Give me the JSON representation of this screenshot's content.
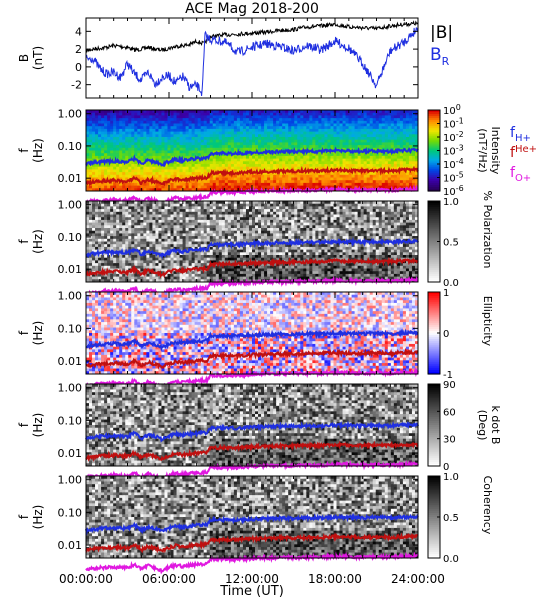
{
  "chart_data": {
    "type": "line",
    "title": "ACE Mag 2018-200",
    "x_label": "Time (UT)",
    "x_ticks": [
      "00:00:00",
      "06:00:00",
      "12:00:00",
      "18:00:00",
      "24:00:00"
    ],
    "x_range_hours": [
      0,
      24
    ],
    "panels": [
      {
        "id": "bfield",
        "ylabel": "B",
        "yunit": "(nT)",
        "yticks": [
          "4",
          "2",
          "0",
          "-2"
        ],
        "ylim": [
          -3.5,
          5.5
        ],
        "scale": "linear",
        "legend": [
          {
            "text": "|B|",
            "color": "#000000"
          },
          {
            "text": "B",
            "sub": "R",
            "color": "#1f2fe0"
          }
        ],
        "series": [
          {
            "name": "|B|",
            "color": "#000000",
            "x": [
              0,
              0.5,
              1,
              1.5,
              2,
              2.5,
              3,
              3.5,
              4,
              4.5,
              5,
              5.5,
              6,
              6.5,
              7,
              7.5,
              8,
              8.5,
              9,
              10,
              11,
              12,
              13,
              14,
              15,
              16,
              17,
              18,
              19,
              20,
              21,
              22,
              23,
              24
            ],
            "y": [
              1.8,
              2.0,
              2.1,
              2.2,
              2.4,
              2.3,
              2.2,
              1.9,
              2.0,
              2.2,
              2.0,
              1.9,
              2.1,
              2.3,
              2.4,
              2.5,
              2.9,
              2.6,
              3.4,
              3.6,
              3.7,
              3.8,
              3.9,
              4.1,
              4.2,
              4.5,
              4.6,
              4.8,
              4.5,
              4.4,
              4.3,
              4.6,
              4.8,
              4.9
            ]
          },
          {
            "name": "B",
            "color": "#1f2fe0",
            "x": [
              0,
              0.5,
              1,
              1.5,
              2,
              2.5,
              3,
              3.5,
              4,
              4.5,
              5,
              5.5,
              6,
              6.5,
              7,
              7.5,
              8,
              8.4,
              8.6,
              9,
              10,
              11,
              12,
              13,
              14,
              15,
              16,
              17,
              18,
              19,
              20,
              21,
              22,
              23,
              24
            ],
            "y": [
              0.9,
              1.0,
              -0.2,
              -0.8,
              -0.6,
              -1.2,
              0.4,
              -0.8,
              -1.5,
              -0.6,
              -1.9,
              -1.2,
              -1.0,
              -1.8,
              -1.1,
              -2.3,
              -2.1,
              -2.9,
              3.5,
              3.1,
              2.8,
              1.6,
              2.2,
              2.6,
              2.3,
              1.8,
              2.4,
              1.9,
              2.9,
              2.1,
              0.4,
              -2.1,
              1.8,
              2.8,
              4.4
            ]
          }
        ]
      },
      {
        "id": "intensity",
        "ylabel": "f",
        "yunit": "(Hz)",
        "yticks": [
          "1.00",
          "0.10",
          "0.01"
        ],
        "scale": "log",
        "ylim": [
          0.004,
          1.3
        ],
        "colorbar": {
          "label": "Intensity",
          "unit": "(nT²/Hz)",
          "type": "rainbow",
          "ticks": [
            {
              "base": "10",
              "exp": "0"
            },
            {
              "base": "10",
              "exp": "-1"
            },
            {
              "base": "10",
              "exp": "-2"
            },
            {
              "base": "10",
              "exp": "-3"
            },
            {
              "base": "10",
              "exp": "-4"
            },
            {
              "base": "10",
              "exp": "-5"
            },
            {
              "base": "10",
              "exp": "-6"
            }
          ]
        },
        "legend": [
          {
            "text": "f",
            "sub": "H+",
            "color": "#1f2fe0"
          },
          {
            "text": "f",
            "sub": "He+",
            "color": "#c01010"
          },
          {
            "text": "f",
            "sub": "O+",
            "color": "#e018e0"
          }
        ]
      },
      {
        "id": "polarization",
        "ylabel": "f",
        "yunit": "(Hz)",
        "yticks": [
          "1.00",
          "0.10",
          "0.01"
        ],
        "scale": "log",
        "ylim": [
          0.004,
          1.3
        ],
        "colorbar": {
          "label": "% Polarization",
          "unit": "",
          "type": "gray",
          "ticks": [
            "1.0",
            "0.5",
            "0.0"
          ]
        }
      },
      {
        "id": "ellipticity",
        "ylabel": "f",
        "yunit": "(Hz)",
        "yticks": [
          "1.00",
          "0.10",
          "0.01"
        ],
        "scale": "log",
        "ylim": [
          0.004,
          1.3
        ],
        "colorbar": {
          "label": "Ellipticity",
          "unit": "",
          "type": "bwr",
          "ticks": [
            "1",
            "0",
            "-1"
          ]
        }
      },
      {
        "id": "kdotb",
        "ylabel": "f",
        "yunit": "(Hz)",
        "yticks": [
          "1.00",
          "0.10",
          "0.01"
        ],
        "scale": "log",
        "ylim": [
          0.004,
          1.3
        ],
        "colorbar": {
          "label": "k dot B",
          "unit": "(Deg)",
          "type": "gray",
          "ticks": [
            "90",
            "60",
            "30",
            "0"
          ]
        }
      },
      {
        "id": "coherency",
        "ylabel": "f",
        "yunit": "(Hz)",
        "yticks": [
          "1.00",
          "0.10",
          "0.01"
        ],
        "scale": "log",
        "ylim": [
          0.004,
          1.3
        ],
        "colorbar": {
          "label": "Coherency",
          "unit": "",
          "type": "gray",
          "ticks": [
            "1.0",
            "0.5",
            "0.0"
          ]
        }
      }
    ],
    "gyro_lines": [
      {
        "name": "f",
        "sub": "H+",
        "color": "#1f2fe0",
        "x": [
          0,
          1,
          2,
          3,
          3.5,
          4,
          4.5,
          5,
          5.5,
          6,
          6.5,
          7,
          7.5,
          8,
          8.8,
          9,
          10,
          11,
          12,
          13,
          14,
          15,
          16,
          17,
          18,
          19,
          20,
          21,
          22,
          23,
          24
        ],
        "y": [
          0.028,
          0.032,
          0.034,
          0.032,
          0.04,
          0.028,
          0.036,
          0.032,
          0.026,
          0.033,
          0.038,
          0.035,
          0.038,
          0.04,
          0.042,
          0.058,
          0.058,
          0.058,
          0.062,
          0.064,
          0.066,
          0.066,
          0.068,
          0.068,
          0.072,
          0.07,
          0.068,
          0.07,
          0.068,
          0.072,
          0.074
        ]
      },
      {
        "name": "f",
        "sub": "He+",
        "color": "#c01010",
        "x": [
          0,
          1,
          2,
          3,
          3.5,
          4,
          4.5,
          5,
          5.5,
          6,
          6.5,
          7,
          7.5,
          8,
          8.8,
          9,
          10,
          11,
          12,
          13,
          14,
          15,
          16,
          17,
          18,
          19,
          20,
          21,
          22,
          23,
          24
        ],
        "y": [
          0.007,
          0.008,
          0.0085,
          0.008,
          0.01,
          0.007,
          0.009,
          0.008,
          0.0065,
          0.0083,
          0.0095,
          0.0088,
          0.0095,
          0.01,
          0.0105,
          0.0145,
          0.0145,
          0.0145,
          0.0155,
          0.016,
          0.0165,
          0.0165,
          0.017,
          0.017,
          0.018,
          0.0175,
          0.017,
          0.0175,
          0.017,
          0.018,
          0.0185
        ]
      },
      {
        "name": "f",
        "sub": "O+",
        "color": "#e018e0",
        "x": [
          0,
          1,
          2,
          3,
          3.5,
          4,
          4.5,
          5,
          5.5,
          6,
          6.5,
          7,
          7.5,
          8,
          8.8,
          9,
          10,
          11,
          12,
          13,
          14,
          15,
          16,
          17,
          18,
          19,
          20,
          21,
          22,
          23,
          24
        ],
        "y": [
          0.0018,
          0.002,
          0.0021,
          0.002,
          0.0025,
          0.0018,
          0.0023,
          0.002,
          0.0016,
          0.0021,
          0.0024,
          0.0022,
          0.0024,
          0.0025,
          0.0026,
          0.0036,
          0.0036,
          0.0036,
          0.0039,
          0.004,
          0.0041,
          0.0041,
          0.0042,
          0.0042,
          0.0045,
          0.0044,
          0.0042,
          0.0044,
          0.0042,
          0.0045,
          0.0046
        ]
      }
    ]
  }
}
